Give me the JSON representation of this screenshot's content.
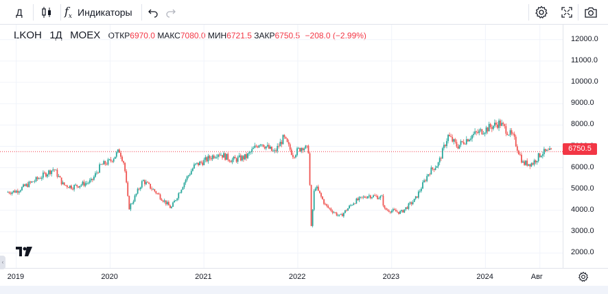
{
  "toolbar": {
    "interval": "Д",
    "chart_type_icon": "candles-icon",
    "indicators_icon": "fx-icon",
    "indicators_label": "Индикаторы",
    "undo_icon": "undo-icon",
    "redo_icon": "redo-icon",
    "settings_icon": "gear-icon",
    "fullscreen_icon": "fullscreen-icon",
    "snapshot_icon": "camera-icon"
  },
  "legend": {
    "symbol": "LKOH",
    "interval": "1Д",
    "exchange": "MOEX",
    "open_label": "ОТКР",
    "open_value": "6970.0",
    "high_label": "МАКС",
    "high_value": "7080.0",
    "low_label": "МИН",
    "low_value": "6721.5",
    "close_label": "ЗАКР",
    "close_value": "6750.5",
    "change": "−208.0 (−2.99%)"
  },
  "last_price": "6750.5",
  "colors": {
    "up": "#26a69a",
    "down": "#ef5350",
    "accent": "#f23645"
  },
  "chart_data": {
    "type": "line",
    "title": "LKOH 1Д MOEX",
    "price_ticks": [
      "12000.0",
      "11000.0",
      "10000.0",
      "9000.0",
      "8000.0",
      "7000.0",
      "6000.0",
      "5000.0",
      "4000.0",
      "3000.0",
      "2000.0"
    ],
    "time_ticks": [
      "2019",
      "2020",
      "2021",
      "2022",
      "2023",
      "2024",
      "Авг"
    ],
    "ylim": [
      1300,
      12700
    ],
    "x": [
      2018.7,
      2018.9,
      2019.0,
      2019.2,
      2019.4,
      2019.5,
      2019.6,
      2019.8,
      2019.9,
      2020.0,
      2020.1,
      2020.15,
      2020.2,
      2020.25,
      2020.35,
      2020.5,
      2020.65,
      2020.8,
      2020.9,
      2021.0,
      2021.15,
      2021.3,
      2021.45,
      2021.6,
      2021.75,
      2021.85,
      2021.95,
      2022.05,
      2022.12,
      2022.14,
      2022.18,
      2022.3,
      2022.45,
      2022.6,
      2022.75,
      2022.9,
      2022.92,
      2023.1,
      2023.25,
      2023.4,
      2023.5,
      2023.6,
      2023.7,
      2023.85,
      2024.0,
      2024.15,
      2024.3,
      2024.4,
      2024.5,
      2024.6,
      2024.7
    ],
    "values": [
      4700,
      4850,
      4900,
      5400,
      5950,
      5200,
      5100,
      5350,
      6100,
      6300,
      6800,
      6200,
      4100,
      4500,
      5400,
      4800,
      4100,
      5400,
      6100,
      6300,
      6700,
      6350,
      6500,
      7200,
      6700,
      7400,
      6600,
      7000,
      6800,
      3000,
      5200,
      4200,
      3700,
      4400,
      4700,
      4600,
      4050,
      3900,
      4500,
      5800,
      6200,
      7500,
      7000,
      7500,
      7800,
      8100,
      7400,
      6200,
      6200,
      6700,
      6750.5
    ],
    "xlabel": "",
    "ylabel": ""
  }
}
